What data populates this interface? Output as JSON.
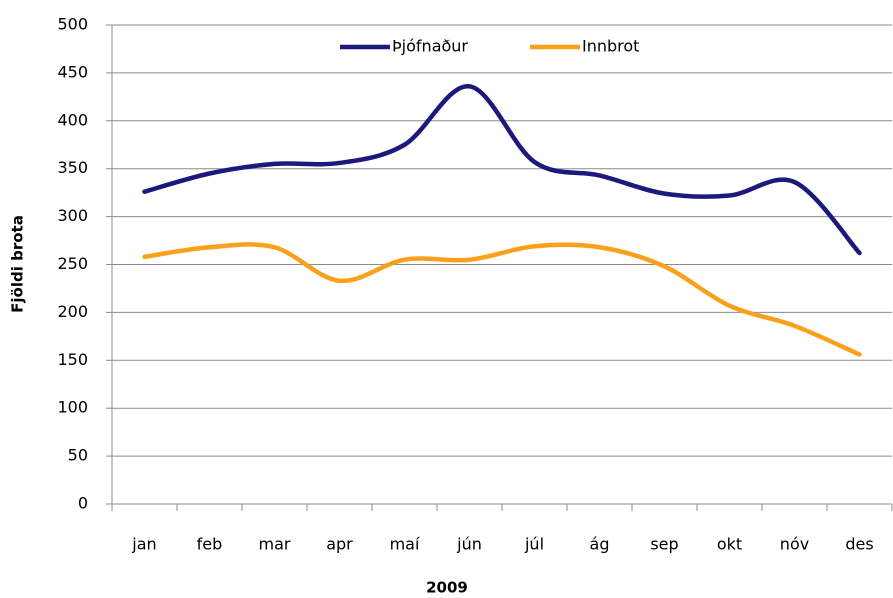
{
  "chart_data": {
    "type": "line",
    "x_label": "2009",
    "y_label": "Fjöldi brota",
    "categories": [
      "jan",
      "feb",
      "mar",
      "apr",
      "maí",
      "jún",
      "júl",
      "ág",
      "sep",
      "okt",
      "nóv",
      "des"
    ],
    "series": [
      {
        "name": "Þjófnaður",
        "color": "#1b1a7c",
        "values": [
          326,
          345,
          355,
          356,
          375,
          436,
          357,
          343,
          324,
          322,
          336,
          262
        ]
      },
      {
        "name": "Innbrot",
        "color": "#f9a11b",
        "values": [
          258,
          268,
          268,
          233,
          255,
          255,
          269,
          268,
          248,
          207,
          186,
          156
        ]
      }
    ],
    "ylim": [
      0,
      500
    ],
    "yticks": [
      0,
      50,
      100,
      150,
      200,
      250,
      300,
      350,
      400,
      450,
      500
    ],
    "grid": true,
    "smooth": true,
    "legend": "top"
  }
}
